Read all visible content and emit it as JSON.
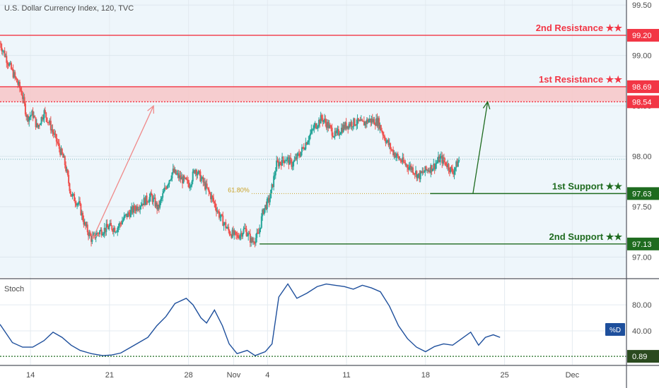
{
  "header": {
    "title": "U.S. Dollar Currency Index, 120, TVC"
  },
  "indicator": {
    "name": "Stoch",
    "badge": "%D",
    "last_value_label": "0.89"
  },
  "colors": {
    "up": "#26a69a",
    "down": "#ef5350",
    "resistance": "#f23645",
    "support": "#1e6b1f",
    "zone_fill": "#f7c6c7",
    "stoch": "#1e4f9c",
    "fib": "#c9a227",
    "bg_main": "#eef6fb"
  },
  "chart_data": [
    {
      "type": "candlestick",
      "title": "U.S. Dollar Currency Index, 120, TVC",
      "x": {
        "ticks": [
          "14",
          "21",
          "28",
          "Nov",
          "4",
          "11",
          "18",
          "25",
          "Dec"
        ],
        "tick_days": [
          14,
          21,
          28,
          32,
          35,
          42,
          49,
          56,
          62
        ],
        "range_days": [
          11.3,
          66.8
        ]
      },
      "y": {
        "ticks": [
          "97.00",
          "97.50",
          "98.00",
          "98.50",
          "99.00",
          "99.50"
        ],
        "ylim": [
          96.8,
          99.55
        ]
      },
      "price_path": [
        [
          11.3,
          99.12
        ],
        [
          12.3,
          98.86
        ],
        [
          13.2,
          98.64
        ],
        [
          13.7,
          98.38
        ],
        [
          14.2,
          98.42
        ],
        [
          14.6,
          98.28
        ],
        [
          15.2,
          98.44
        ],
        [
          15.7,
          98.32
        ],
        [
          16.2,
          98.18
        ],
        [
          17.0,
          97.95
        ],
        [
          17.6,
          97.62
        ],
        [
          18.3,
          97.52
        ],
        [
          18.8,
          97.32
        ],
        [
          19.4,
          97.18
        ],
        [
          20.1,
          97.25
        ],
        [
          21.0,
          97.3
        ],
        [
          21.6,
          97.28
        ],
        [
          22.4,
          97.4
        ],
        [
          23.2,
          97.48
        ],
        [
          24.0,
          97.55
        ],
        [
          24.7,
          97.6
        ],
        [
          25.3,
          97.48
        ],
        [
          26.0,
          97.7
        ],
        [
          26.6,
          97.85
        ],
        [
          27.3,
          97.78
        ],
        [
          28.1,
          97.72
        ],
        [
          28.6,
          97.88
        ],
        [
          29.4,
          97.72
        ],
        [
          30.1,
          97.58
        ],
        [
          30.8,
          97.4
        ],
        [
          31.6,
          97.25
        ],
        [
          32.3,
          97.2
        ],
        [
          33.0,
          97.28
        ],
        [
          33.6,
          97.15
        ],
        [
          34.2,
          97.22
        ],
        [
          34.6,
          97.46
        ],
        [
          35.2,
          97.58
        ],
        [
          35.8,
          97.92
        ],
        [
          36.6,
          97.98
        ],
        [
          37.2,
          97.92
        ],
        [
          38.0,
          98.05
        ],
        [
          38.6,
          98.18
        ],
        [
          39.2,
          98.3
        ],
        [
          39.8,
          98.38
        ],
        [
          40.4,
          98.3
        ],
        [
          41.0,
          98.2
        ],
        [
          41.6,
          98.28
        ],
        [
          42.2,
          98.32
        ],
        [
          42.8,
          98.34
        ],
        [
          43.4,
          98.32
        ],
        [
          44.0,
          98.36
        ],
        [
          44.8,
          98.34
        ],
        [
          45.4,
          98.18
        ],
        [
          46.0,
          98.06
        ],
        [
          46.6,
          97.98
        ],
        [
          47.2,
          97.92
        ],
        [
          47.8,
          97.88
        ],
        [
          48.4,
          97.8
        ],
        [
          49.0,
          97.86
        ],
        [
          49.7,
          97.9
        ],
        [
          50.3,
          97.98
        ],
        [
          50.9,
          97.92
        ],
        [
          51.4,
          97.84
        ],
        [
          52.0,
          97.97
        ]
      ],
      "levels": [
        {
          "name": "2nd Resistance ★★",
          "price": 99.2,
          "price_label": "99.20",
          "kind": "resistance"
        },
        {
          "name": "1st Resistance ★★",
          "price": 98.69,
          "price_label": "98.69",
          "kind": "resistance"
        },
        {
          "name": "",
          "price": 98.54,
          "price_label": "98.54",
          "kind": "zone-bottom"
        },
        {
          "name": "1st Support ★★",
          "price": 97.63,
          "price_label": "97.63",
          "kind": "support"
        },
        {
          "name": "2nd Support ★★",
          "price": 97.13,
          "price_label": "97.13",
          "kind": "support"
        }
      ],
      "fibonacci": {
        "label": "61.80%",
        "price": 97.63
      },
      "annotations": [
        {
          "type": "arrow",
          "from": [
            19.5,
            97.18
          ],
          "to": [
            24.9,
            98.5
          ],
          "color": "down"
        },
        {
          "type": "arrow",
          "from": [
            53.2,
            97.63
          ],
          "to": [
            54.5,
            98.54
          ],
          "color": "support"
        }
      ]
    },
    {
      "type": "line",
      "title": "Stoch",
      "y": {
        "ticks": [
          "40.00",
          "80.00"
        ],
        "ylim": [
          -12,
          118
        ]
      },
      "series": [
        {
          "name": "%D",
          "points": [
            [
              11.3,
              50
            ],
            [
              12.4,
              22
            ],
            [
              13.3,
              15
            ],
            [
              14.2,
              15
            ],
            [
              15.2,
              25
            ],
            [
              16.0,
              38
            ],
            [
              16.8,
              30
            ],
            [
              17.6,
              18
            ],
            [
              18.4,
              10
            ],
            [
              19.4,
              5
            ],
            [
              20.4,
              2
            ],
            [
              21.2,
              3
            ],
            [
              22.0,
              6
            ],
            [
              22.8,
              14
            ],
            [
              23.6,
              22
            ],
            [
              24.4,
              30
            ],
            [
              25.2,
              48
            ],
            [
              26.0,
              62
            ],
            [
              26.8,
              82
            ],
            [
              27.8,
              90
            ],
            [
              28.4,
              80
            ],
            [
              29.1,
              60
            ],
            [
              29.6,
              52
            ],
            [
              30.3,
              72
            ],
            [
              31.0,
              48
            ],
            [
              31.6,
              20
            ],
            [
              32.3,
              5
            ],
            [
              33.2,
              10
            ],
            [
              33.9,
              2
            ],
            [
              34.8,
              8
            ],
            [
              35.4,
              20
            ],
            [
              36.0,
              92
            ],
            [
              36.8,
              112
            ],
            [
              37.6,
              90
            ],
            [
              38.5,
              98
            ],
            [
              39.4,
              108
            ],
            [
              40.2,
              112
            ],
            [
              41.0,
              110
            ],
            [
              41.8,
              108
            ],
            [
              42.6,
              104
            ],
            [
              43.4,
              110
            ],
            [
              44.2,
              106
            ],
            [
              45.0,
              100
            ],
            [
              45.8,
              78
            ],
            [
              46.6,
              48
            ],
            [
              47.4,
              28
            ],
            [
              48.2,
              15
            ],
            [
              49.0,
              8
            ],
            [
              49.8,
              16
            ],
            [
              50.6,
              20
            ],
            [
              51.4,
              18
            ],
            [
              52.2,
              28
            ],
            [
              53.0,
              38
            ],
            [
              53.7,
              18
            ],
            [
              54.3,
              30
            ],
            [
              55.0,
              34
            ],
            [
              55.6,
              30
            ]
          ]
        }
      ],
      "reference_level": 0.89
    }
  ]
}
